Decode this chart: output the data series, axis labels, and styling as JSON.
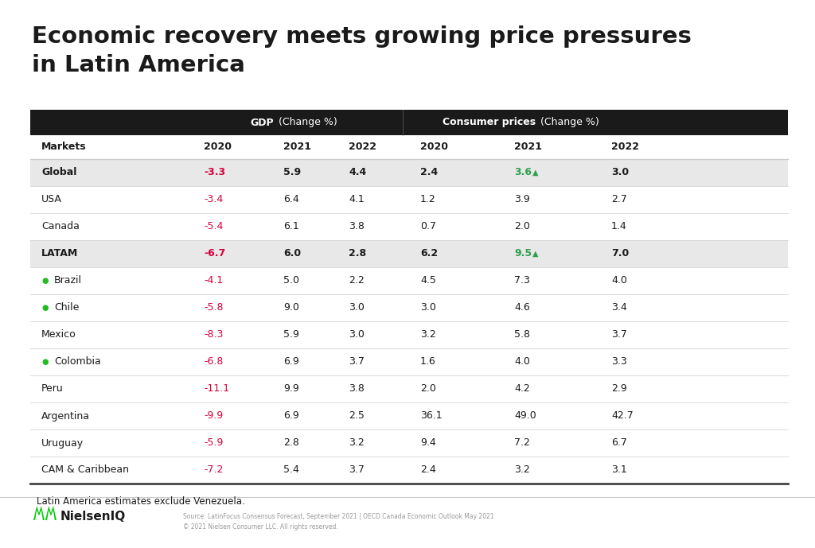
{
  "title_line1": "Economic recovery meets growing price pressures",
  "title_line2": "in Latin America",
  "title_fontsize": 21,
  "background_color": "#ffffff",
  "header_bg": "#1a1a1a",
  "subheader_row_bg": "#e8e8e8",
  "normal_row_bg": "#ffffff",
  "red_color": "#d7003a",
  "green_color": "#2e9e4f",
  "black_color": "#1a1a1a",
  "green_dot_color": "#22bb22",
  "gray_line": "#cccccc",
  "dark_line": "#444444",
  "footnote": "Latin America estimates exclude Venezuela.",
  "source_text": "Source: LatinFocus Consensus Forecast, September 2021 | OECD Canada Economic Outlook May 2021\n© 2021 Nielsen Consumer LLC. All rights reserved.",
  "rows": [
    {
      "market": "Global",
      "bold": true,
      "green_dot": false,
      "shaded": true,
      "gdp": [
        "-3.3",
        "5.9",
        "4.4"
      ],
      "cp": [
        "2.4",
        "3.6",
        "3.0"
      ],
      "gdp_red": [
        true,
        false,
        false
      ],
      "cp_green": [
        false,
        true,
        false
      ],
      "cp_tri": [
        false,
        true,
        false
      ]
    },
    {
      "market": "USA",
      "bold": false,
      "green_dot": false,
      "shaded": false,
      "gdp": [
        "-3.4",
        "6.4",
        "4.1"
      ],
      "cp": [
        "1.2",
        "3.9",
        "2.7"
      ],
      "gdp_red": [
        true,
        false,
        false
      ],
      "cp_green": [
        false,
        false,
        false
      ],
      "cp_tri": [
        false,
        false,
        false
      ]
    },
    {
      "market": "Canada",
      "bold": false,
      "green_dot": false,
      "shaded": false,
      "gdp": [
        "-5.4",
        "6.1",
        "3.8"
      ],
      "cp": [
        "0.7",
        "2.0",
        "1.4"
      ],
      "gdp_red": [
        true,
        false,
        false
      ],
      "cp_green": [
        false,
        false,
        false
      ],
      "cp_tri": [
        false,
        false,
        false
      ]
    },
    {
      "market": "LATAM",
      "bold": true,
      "green_dot": false,
      "shaded": true,
      "gdp": [
        "-6.7",
        "6.0",
        "2.8"
      ],
      "cp": [
        "6.2",
        "9.5",
        "7.0"
      ],
      "gdp_red": [
        true,
        false,
        false
      ],
      "cp_green": [
        false,
        true,
        false
      ],
      "cp_tri": [
        false,
        true,
        false
      ]
    },
    {
      "market": "Brazil",
      "bold": false,
      "green_dot": true,
      "shaded": false,
      "gdp": [
        "-4.1",
        "5.0",
        "2.2"
      ],
      "cp": [
        "4.5",
        "7.3",
        "4.0"
      ],
      "gdp_red": [
        true,
        false,
        false
      ],
      "cp_green": [
        false,
        false,
        false
      ],
      "cp_tri": [
        false,
        false,
        false
      ]
    },
    {
      "market": "Chile",
      "bold": false,
      "green_dot": true,
      "shaded": false,
      "gdp": [
        "-5.8",
        "9.0",
        "3.0"
      ],
      "cp": [
        "3.0",
        "4.6",
        "3.4"
      ],
      "gdp_red": [
        true,
        false,
        false
      ],
      "cp_green": [
        false,
        false,
        false
      ],
      "cp_tri": [
        false,
        false,
        false
      ]
    },
    {
      "market": "Mexico",
      "bold": false,
      "green_dot": false,
      "shaded": false,
      "gdp": [
        "-8.3",
        "5.9",
        "3.0"
      ],
      "cp": [
        "3.2",
        "5.8",
        "3.7"
      ],
      "gdp_red": [
        true,
        false,
        false
      ],
      "cp_green": [
        false,
        false,
        false
      ],
      "cp_tri": [
        false,
        false,
        false
      ]
    },
    {
      "market": "Colombia",
      "bold": false,
      "green_dot": true,
      "shaded": false,
      "gdp": [
        "-6.8",
        "6.9",
        "3.7"
      ],
      "cp": [
        "1.6",
        "4.0",
        "3.3"
      ],
      "gdp_red": [
        true,
        false,
        false
      ],
      "cp_green": [
        false,
        false,
        false
      ],
      "cp_tri": [
        false,
        false,
        false
      ]
    },
    {
      "market": "Peru",
      "bold": false,
      "green_dot": false,
      "shaded": false,
      "gdp": [
        "-11.1",
        "9.9",
        "3.8"
      ],
      "cp": [
        "2.0",
        "4.2",
        "2.9"
      ],
      "gdp_red": [
        true,
        false,
        false
      ],
      "cp_green": [
        false,
        false,
        false
      ],
      "cp_tri": [
        false,
        false,
        false
      ]
    },
    {
      "market": "Argentina",
      "bold": false,
      "green_dot": false,
      "shaded": false,
      "gdp": [
        "-9.9",
        "6.9",
        "2.5"
      ],
      "cp": [
        "36.1",
        "49.0",
        "42.7"
      ],
      "gdp_red": [
        true,
        false,
        false
      ],
      "cp_green": [
        false,
        false,
        false
      ],
      "cp_tri": [
        false,
        false,
        false
      ]
    },
    {
      "market": "Uruguay",
      "bold": false,
      "green_dot": false,
      "shaded": false,
      "gdp": [
        "-5.9",
        "2.8",
        "3.2"
      ],
      "cp": [
        "9.4",
        "7.2",
        "6.7"
      ],
      "gdp_red": [
        true,
        false,
        false
      ],
      "cp_green": [
        false,
        false,
        false
      ],
      "cp_tri": [
        false,
        false,
        false
      ]
    },
    {
      "market": "CAM & Caribbean",
      "bold": false,
      "green_dot": false,
      "shaded": false,
      "gdp": [
        "-7.2",
        "5.4",
        "3.7"
      ],
      "cp": [
        "2.4",
        "3.2",
        "3.1"
      ],
      "gdp_red": [
        true,
        false,
        false
      ],
      "cp_green": [
        false,
        false,
        false
      ],
      "cp_tri": [
        false,
        false,
        false
      ]
    }
  ]
}
